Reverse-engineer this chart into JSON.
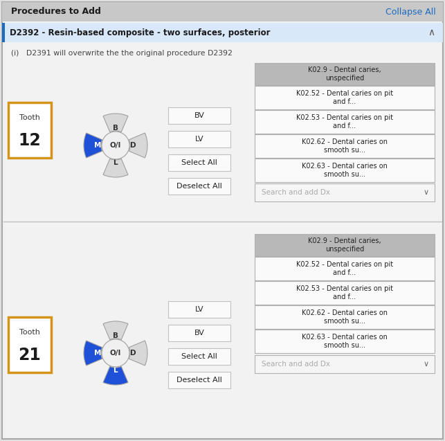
{
  "bg_color": "#e0e0e0",
  "header_bg": "#c8c8c8",
  "header_text": "Procedures to Add",
  "collapse_all_text": "Collapse All",
  "collapse_all_color": "#1a6bbf",
  "section_bg": "#d8e8f8",
  "section_text": "D2392 - Resin-based composite - two surfaces, posterior",
  "info_text": "D2391 will overwrite the the original procedure D2392",
  "tooth_box_color": "#d4941a",
  "tooth_box_fill": "#ffffff",
  "tooth1_label": "Tooth",
  "tooth1_number": "12",
  "tooth2_label": "Tooth",
  "tooth2_number": "21",
  "blue_color": "#1e50d8",
  "button_border": "#c0c0c0",
  "button_fill": "#fafafa",
  "dx_header_fill": "#b8b8b8",
  "dx_item_fill": "#fafafa",
  "dx_items": [
    "K02.9 - Dental caries,\nunspecified",
    "K02.52 - Dental caries on pit\nand f...",
    "K02.53 - Dental caries on pit\nand f...",
    "K02.62 - Dental caries on\nsmooth su...",
    "K02.63 - Dental caries on\nsmooth su..."
  ],
  "buttons1": [
    "BV",
    "LV",
    "Select All",
    "Deselect All"
  ],
  "buttons2": [
    "LV",
    "BV",
    "Select All",
    "Deselect All"
  ],
  "search_text": "Search and add Dx",
  "section_accent": "#1a6bbf"
}
